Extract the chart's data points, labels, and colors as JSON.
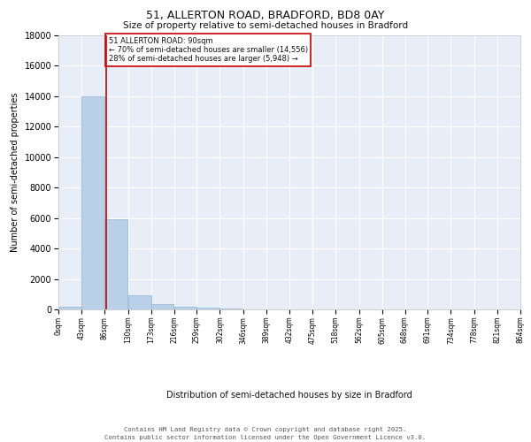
{
  "title_line1": "51, ALLERTON ROAD, BRADFORD, BD8 0AY",
  "title_line2": "Size of property relative to semi-detached houses in Bradford",
  "xlabel": "Distribution of semi-detached houses by size in Bradford",
  "ylabel": "Number of semi-detached properties",
  "annotation_title": "51 ALLERTON ROAD: 90sqm",
  "annotation_line2": "← 70% of semi-detached houses are smaller (14,556)",
  "annotation_line3": "28% of semi-detached houses are larger (5,948) →",
  "footer_line1": "Contains HM Land Registry data © Crown copyright and database right 2025.",
  "footer_line2": "Contains public sector information licensed under the Open Government Licence v3.0.",
  "property_size_sqm": 90,
  "bins": [
    0,
    43,
    86,
    130,
    173,
    216,
    259,
    302,
    346,
    389,
    432,
    475,
    518,
    562,
    605,
    648,
    691,
    734,
    778,
    821,
    864
  ],
  "bin_labels": [
    "0sqm",
    "43sqm",
    "86sqm",
    "130sqm",
    "173sqm",
    "216sqm",
    "259sqm",
    "302sqm",
    "346sqm",
    "389sqm",
    "432sqm",
    "475sqm",
    "518sqm",
    "562sqm",
    "605sqm",
    "648sqm",
    "691sqm",
    "734sqm",
    "778sqm",
    "821sqm",
    "864sqm"
  ],
  "counts": [
    200,
    14000,
    5900,
    950,
    320,
    160,
    90,
    50,
    0,
    0,
    0,
    0,
    0,
    0,
    0,
    0,
    0,
    0,
    0,
    0
  ],
  "bar_color": "#b8d0e8",
  "bar_edge_color": "#90b4d4",
  "red_line_color": "#cc0000",
  "background_color": "#e8eef8",
  "grid_color": "#ffffff",
  "ylim": [
    0,
    18000
  ],
  "yticks": [
    0,
    2000,
    4000,
    6000,
    8000,
    10000,
    12000,
    14000,
    16000,
    18000
  ]
}
